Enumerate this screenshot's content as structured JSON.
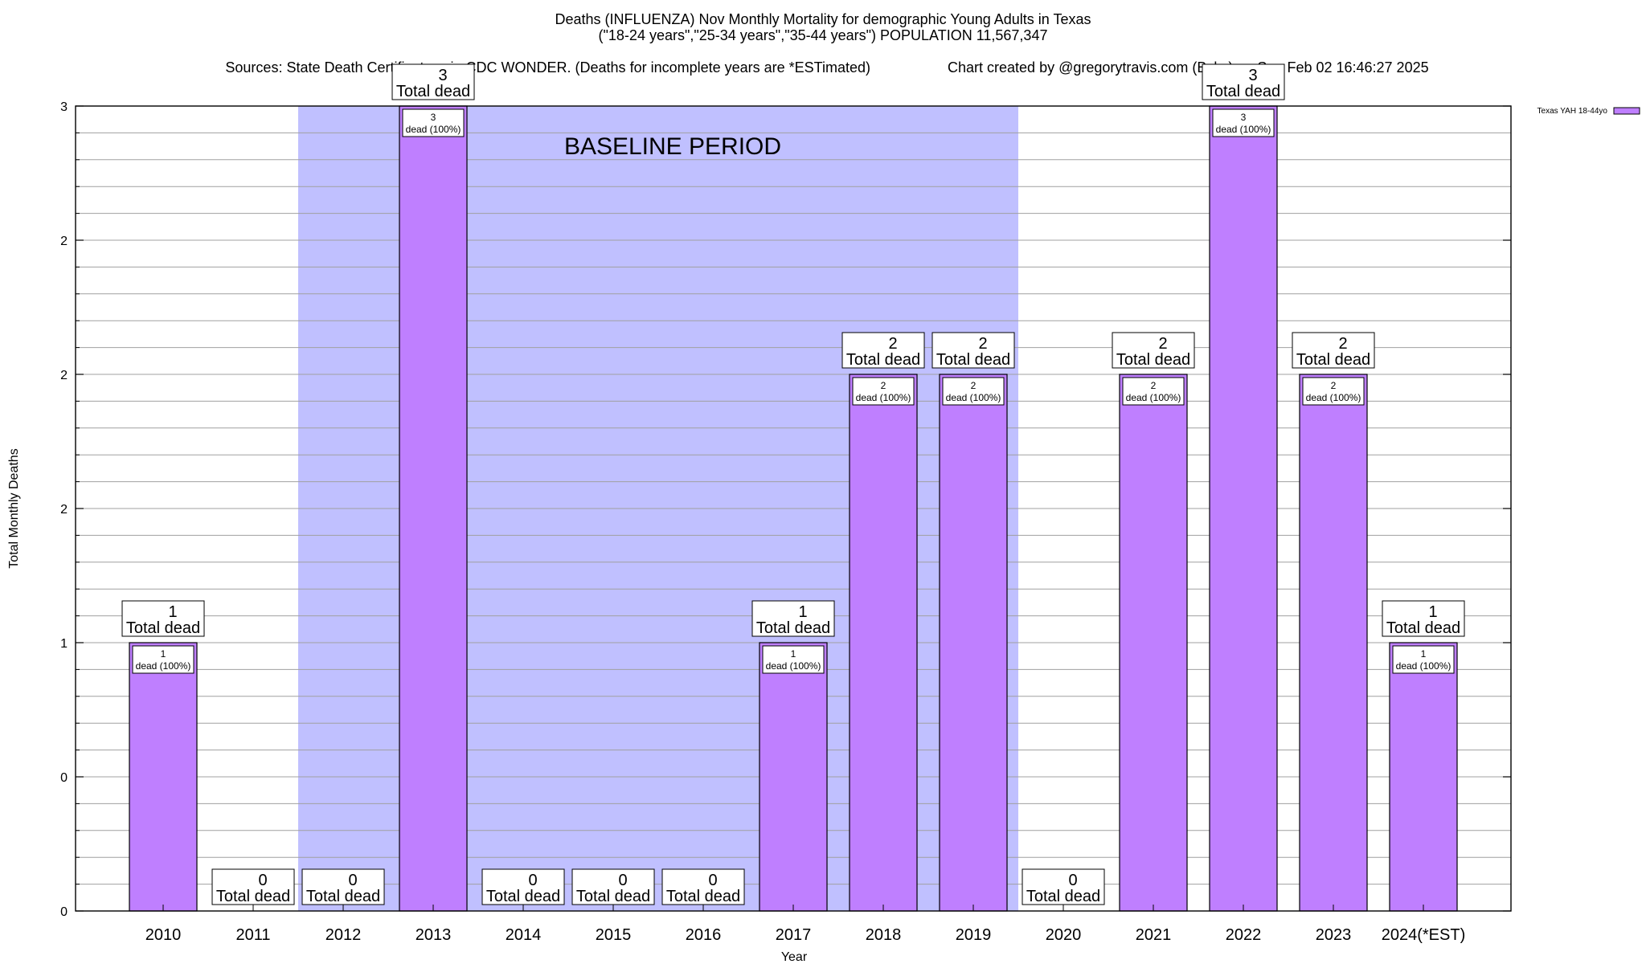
{
  "chart_data": {
    "type": "bar",
    "title": "Deaths (INFLUENZA) Nov Monthly Mortality for demographic Young Adults in Texas",
    "subtitle": "(\"18-24 years\",\"25-34 years\",\"35-44 years\") POPULATION 11,567,347",
    "sources": "Sources: State Death Certificates via CDC WONDER. (Deaths for incomplete years are *ESTimated)",
    "credit": "Chart created by @gregorytravis.com (Bsky) on Sun Feb 02 16:46:27 2025",
    "xlabel": "Year",
    "ylabel": "Total Monthly Deaths",
    "categories": [
      "2010",
      "2011",
      "2012",
      "2013",
      "2014",
      "2015",
      "2016",
      "2017",
      "2018",
      "2019",
      "2020",
      "2021",
      "2022",
      "2023",
      "2024(*EST)"
    ],
    "series": [
      {
        "name": "Texas YAH 18-44yo",
        "values": [
          1,
          0,
          0,
          3,
          0,
          0,
          0,
          1,
          2,
          2,
          0,
          2,
          3,
          2,
          1
        ]
      }
    ],
    "bar_label_line2": "Total dead",
    "inner_label_suffix": "dead (100%)",
    "ylim": [
      0,
      3
    ],
    "y_tick_labels": [
      "0",
      "0",
      "1",
      "2",
      "2",
      "2",
      "3"
    ],
    "shaded_region": {
      "label": "BASELINE PERIOD",
      "from": "2012",
      "to": "2019"
    },
    "legend_position": "top-right",
    "grid": true,
    "colors": {
      "bar": "#bf7fff",
      "baseline": "#c0c0ff",
      "frame": "#000000",
      "grid": "#a0a0a0"
    }
  }
}
